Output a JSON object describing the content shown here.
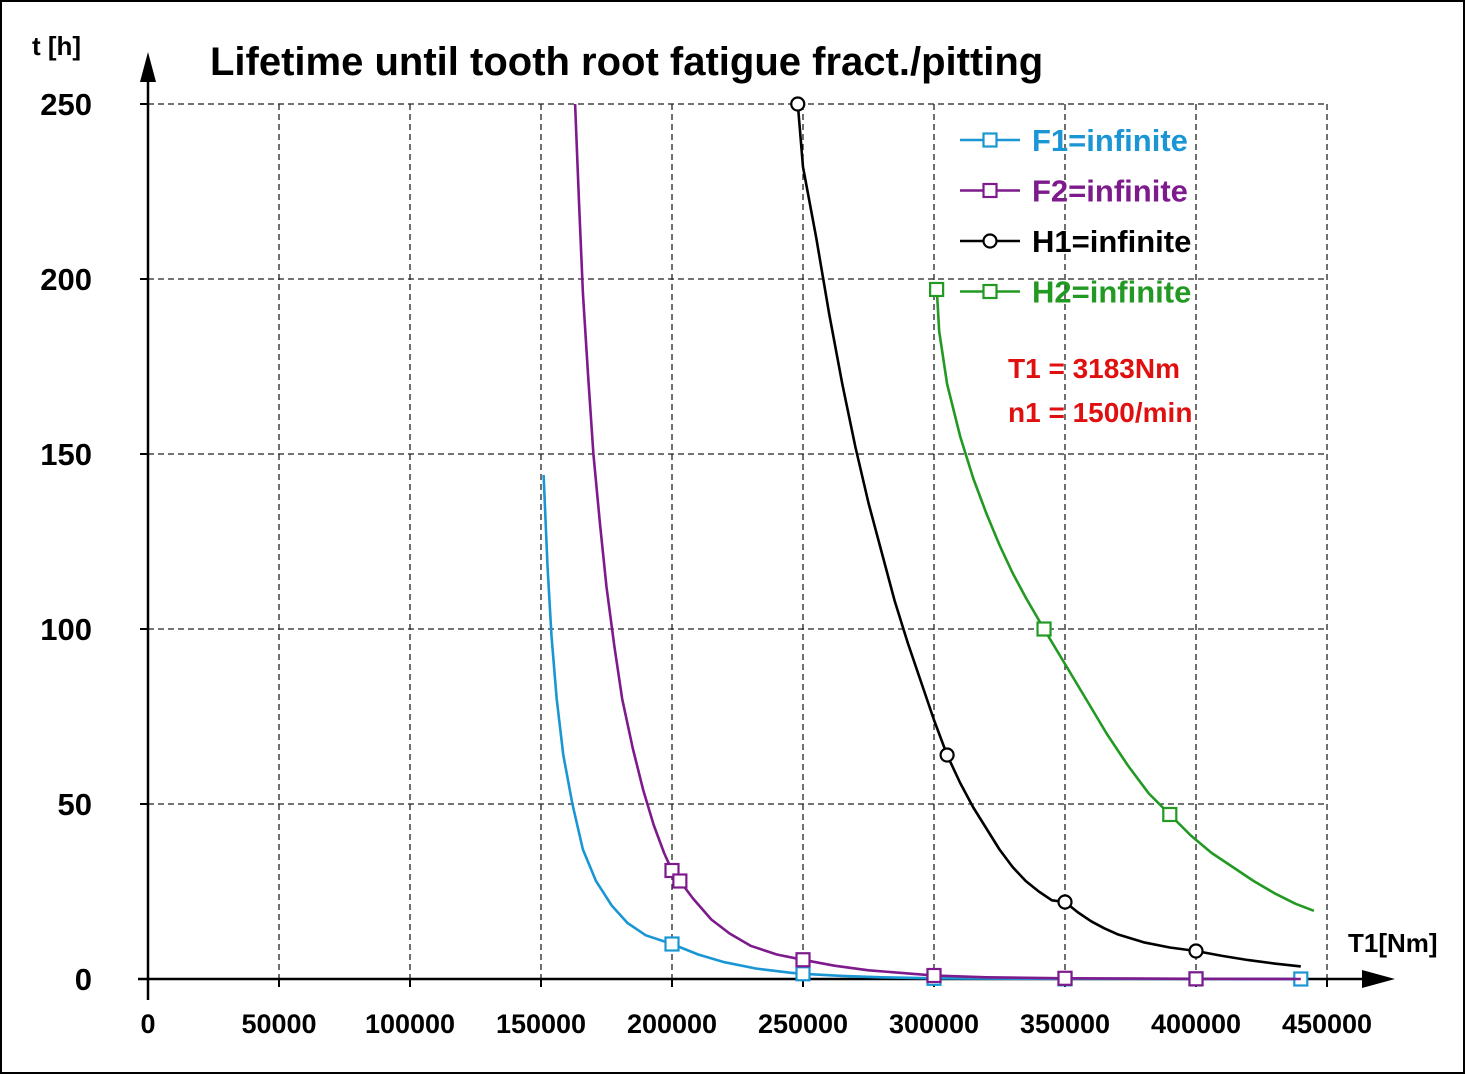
{
  "chart_data": {
    "type": "line",
    "title": "Lifetime until tooth root fatigue fract./pitting",
    "xlabel": "T1[Nm]",
    "ylabel": "t [h]",
    "xlim": [
      0,
      450000
    ],
    "ylim": [
      0,
      250
    ],
    "x_ticks": [
      0,
      50000,
      100000,
      150000,
      200000,
      250000,
      300000,
      350000,
      400000,
      450000
    ],
    "y_ticks": [
      0,
      50,
      100,
      150,
      200,
      250
    ],
    "grid": true,
    "legend_position": "top-right",
    "series": [
      {
        "name": "F1=infinite",
        "color": "#1a96d4",
        "marker": "square",
        "line_points": [
          [
            151000,
            144
          ],
          [
            152500,
            118
          ],
          [
            154000,
            98
          ],
          [
            156000,
            80
          ],
          [
            158500,
            64
          ],
          [
            162000,
            50
          ],
          [
            166000,
            37
          ],
          [
            171000,
            28
          ],
          [
            177000,
            21
          ],
          [
            183000,
            16
          ],
          [
            190000,
            12.5
          ],
          [
            200000,
            10
          ],
          [
            210000,
            7
          ],
          [
            220000,
            4.8
          ],
          [
            232000,
            3
          ],
          [
            245000,
            1.8
          ],
          [
            250000,
            1.5
          ],
          [
            265000,
            0.9
          ],
          [
            280000,
            0.5
          ],
          [
            300000,
            0.2
          ],
          [
            320000,
            0.1
          ],
          [
            350000,
            0.05
          ],
          [
            400000,
            0.02
          ],
          [
            440000,
            0
          ]
        ],
        "markers": [
          [
            200000,
            10
          ],
          [
            250000,
            1.5
          ],
          [
            300000,
            0.2
          ],
          [
            350000,
            0.05
          ],
          [
            400000,
            0.02
          ],
          [
            440000,
            0
          ]
        ]
      },
      {
        "name": "F2=infinite",
        "color": "#7d1a8c",
        "marker": "square",
        "line_points": [
          [
            163000,
            250
          ],
          [
            164500,
            222
          ],
          [
            166000,
            196
          ],
          [
            168000,
            172
          ],
          [
            170000,
            150
          ],
          [
            172500,
            130
          ],
          [
            175000,
            112
          ],
          [
            178000,
            95
          ],
          [
            181000,
            80
          ],
          [
            185000,
            66
          ],
          [
            189000,
            54
          ],
          [
            193000,
            44
          ],
          [
            197000,
            36
          ],
          [
            200000,
            31
          ],
          [
            203000,
            28
          ],
          [
            208000,
            23
          ],
          [
            215000,
            17
          ],
          [
            222000,
            13
          ],
          [
            230000,
            9.5
          ],
          [
            240000,
            7
          ],
          [
            250000,
            5.5
          ],
          [
            262000,
            3.8
          ],
          [
            275000,
            2.5
          ],
          [
            290000,
            1.6
          ],
          [
            300000,
            1
          ],
          [
            320000,
            0.5
          ],
          [
            350000,
            0.2
          ],
          [
            400000,
            0.05
          ],
          [
            440000,
            0
          ]
        ],
        "markers": [
          [
            200000,
            31
          ],
          [
            203000,
            28
          ],
          [
            250000,
            5.5
          ],
          [
            300000,
            1
          ],
          [
            350000,
            0.2
          ],
          [
            400000,
            0.05
          ]
        ]
      },
      {
        "name": "H1=infinite",
        "color": "#000000",
        "marker": "circle",
        "line_points": [
          [
            248000,
            250
          ],
          [
            250000,
            232
          ],
          [
            255000,
            212
          ],
          [
            260000,
            190
          ],
          [
            265000,
            170
          ],
          [
            270000,
            152
          ],
          [
            275000,
            136
          ],
          [
            280000,
            122
          ],
          [
            285000,
            108
          ],
          [
            290000,
            96
          ],
          [
            295000,
            85
          ],
          [
            300000,
            74
          ],
          [
            305000,
            64
          ],
          [
            310000,
            56
          ],
          [
            315000,
            49
          ],
          [
            320000,
            43
          ],
          [
            325000,
            37
          ],
          [
            330000,
            32
          ],
          [
            335000,
            28
          ],
          [
            340000,
            25
          ],
          [
            345000,
            22.5
          ],
          [
            350000,
            22
          ],
          [
            355000,
            19
          ],
          [
            360000,
            16.5
          ],
          [
            365000,
            14.5
          ],
          [
            370000,
            12.8
          ],
          [
            380000,
            10.5
          ],
          [
            390000,
            9
          ],
          [
            400000,
            8
          ],
          [
            410000,
            6.6
          ],
          [
            420000,
            5.4
          ],
          [
            430000,
            4.4
          ],
          [
            440000,
            3.6
          ]
        ],
        "markers": [
          [
            248000,
            250
          ],
          [
            305000,
            64
          ],
          [
            350000,
            22
          ],
          [
            400000,
            8
          ]
        ]
      },
      {
        "name": "H2=infinite",
        "color": "#229922",
        "marker": "square",
        "line_points": [
          [
            301000,
            198
          ],
          [
            302000,
            185
          ],
          [
            305000,
            170
          ],
          [
            310000,
            155
          ],
          [
            315000,
            143
          ],
          [
            320000,
            133
          ],
          [
            325000,
            124
          ],
          [
            330000,
            116
          ],
          [
            335000,
            109
          ],
          [
            342000,
            100
          ],
          [
            350000,
            90
          ],
          [
            358000,
            80
          ],
          [
            366000,
            70
          ],
          [
            374000,
            61
          ],
          [
            382000,
            53
          ],
          [
            390000,
            47
          ],
          [
            398000,
            41
          ],
          [
            406000,
            36
          ],
          [
            414000,
            32
          ],
          [
            422000,
            28
          ],
          [
            430000,
            24.5
          ],
          [
            438000,
            21.5
          ],
          [
            445000,
            19.5
          ]
        ],
        "markers": [
          [
            301000,
            197
          ],
          [
            342000,
            100
          ],
          [
            390000,
            47
          ]
        ]
      }
    ],
    "annotations": [
      {
        "text": "T1 = 3183Nm",
        "color": "#e01010"
      },
      {
        "text": "n1 = 1500/min",
        "color": "#e01010"
      }
    ]
  }
}
